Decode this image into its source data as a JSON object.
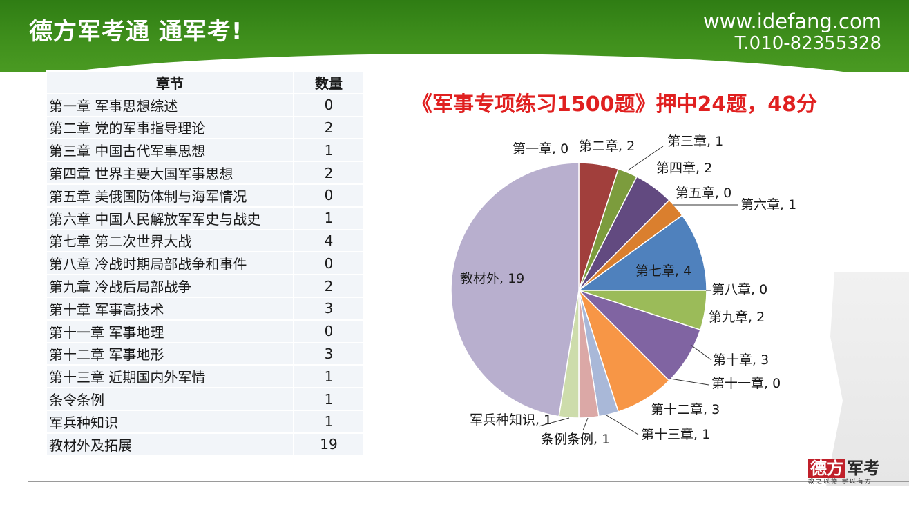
{
  "header": {
    "brand": "德方军考通 通军考!",
    "url": "www.idefang.com",
    "tel": "T.010-82355328"
  },
  "table": {
    "headers": [
      "章节",
      "数量"
    ],
    "rows": [
      {
        "chapter": "第一章 军事思想综述",
        "count": "0"
      },
      {
        "chapter": "第二章 党的军事指导理论",
        "count": "2"
      },
      {
        "chapter": "第三章 中国古代军事思想",
        "count": "1"
      },
      {
        "chapter": "第四章 世界主要大国军事思想",
        "count": "2"
      },
      {
        "chapter": "第五章 美俄国防体制与海军情况",
        "count": "0"
      },
      {
        "chapter": "第六章 中国人民解放军军史与战史",
        "count": "1"
      },
      {
        "chapter": "第七章 第二次世界大战",
        "count": "4"
      },
      {
        "chapter": "第八章 冷战时期局部战争和事件",
        "count": "0"
      },
      {
        "chapter": "第九章 冷战后局部战争",
        "count": "2"
      },
      {
        "chapter": "第十章 军事高技术",
        "count": "3"
      },
      {
        "chapter": "第十一章 军事地理",
        "count": "0"
      },
      {
        "chapter": "第十二章 军事地形",
        "count": "3"
      },
      {
        "chapter": "第十三章 近期国内外军情",
        "count": "1"
      },
      {
        "chapter": "条令条例",
        "count": "1"
      },
      {
        "chapter": "军兵种知识",
        "count": "1"
      },
      {
        "chapter": "教材外及拓展",
        "count": "19"
      }
    ]
  },
  "chart_data": {
    "type": "pie",
    "title": "《军事专项练习1500题》押中24题，48分",
    "slices": [
      {
        "label": "第一章",
        "value": 0,
        "color": "#4f81bd",
        "display": "第一章, 0"
      },
      {
        "label": "第二章",
        "value": 2,
        "color": "#a13f3c",
        "display": "第二章, 2"
      },
      {
        "label": "第三章",
        "value": 1,
        "color": "#7c9c3d",
        "display": "第三章, 1"
      },
      {
        "label": "第四章",
        "value": 2,
        "color": "#624a80",
        "display": "第四章, 2"
      },
      {
        "label": "第五章",
        "value": 0,
        "color": "#4bacc6",
        "display": "第五章, 0"
      },
      {
        "label": "第六章",
        "value": 1,
        "color": "#da7f2e",
        "display": "第六章, 1"
      },
      {
        "label": "第七章",
        "value": 4,
        "color": "#4f81bd",
        "display": "第七章, 4"
      },
      {
        "label": "第八章",
        "value": 0,
        "color": "#c0504d",
        "display": "第八章, 0"
      },
      {
        "label": "第九章",
        "value": 2,
        "color": "#9bbb59",
        "display": "第九章, 2"
      },
      {
        "label": "第十章",
        "value": 3,
        "color": "#8064a2",
        "display": "第十章, 3"
      },
      {
        "label": "第十一章",
        "value": 0,
        "color": "#4bacc6",
        "display": "第十一章, 0"
      },
      {
        "label": "第十二章",
        "value": 3,
        "color": "#f79646",
        "display": "第十二章, 3"
      },
      {
        "label": "第十三章",
        "value": 1,
        "color": "#a9b8d8",
        "display": "第十三章, 1"
      },
      {
        "label": "条例条例",
        "value": 1,
        "color": "#dba8a6",
        "display": "条例条例, 1"
      },
      {
        "label": "军兵种知识",
        "value": 1,
        "color": "#cddcab",
        "display": "军兵种知识, 1"
      },
      {
        "label": "教材外",
        "value": 19,
        "color": "#b8afce",
        "display": "教材外, 19"
      }
    ]
  },
  "logo": {
    "part1": "德方",
    "part2": "军考",
    "tagline": "教之以德 学以有方"
  }
}
